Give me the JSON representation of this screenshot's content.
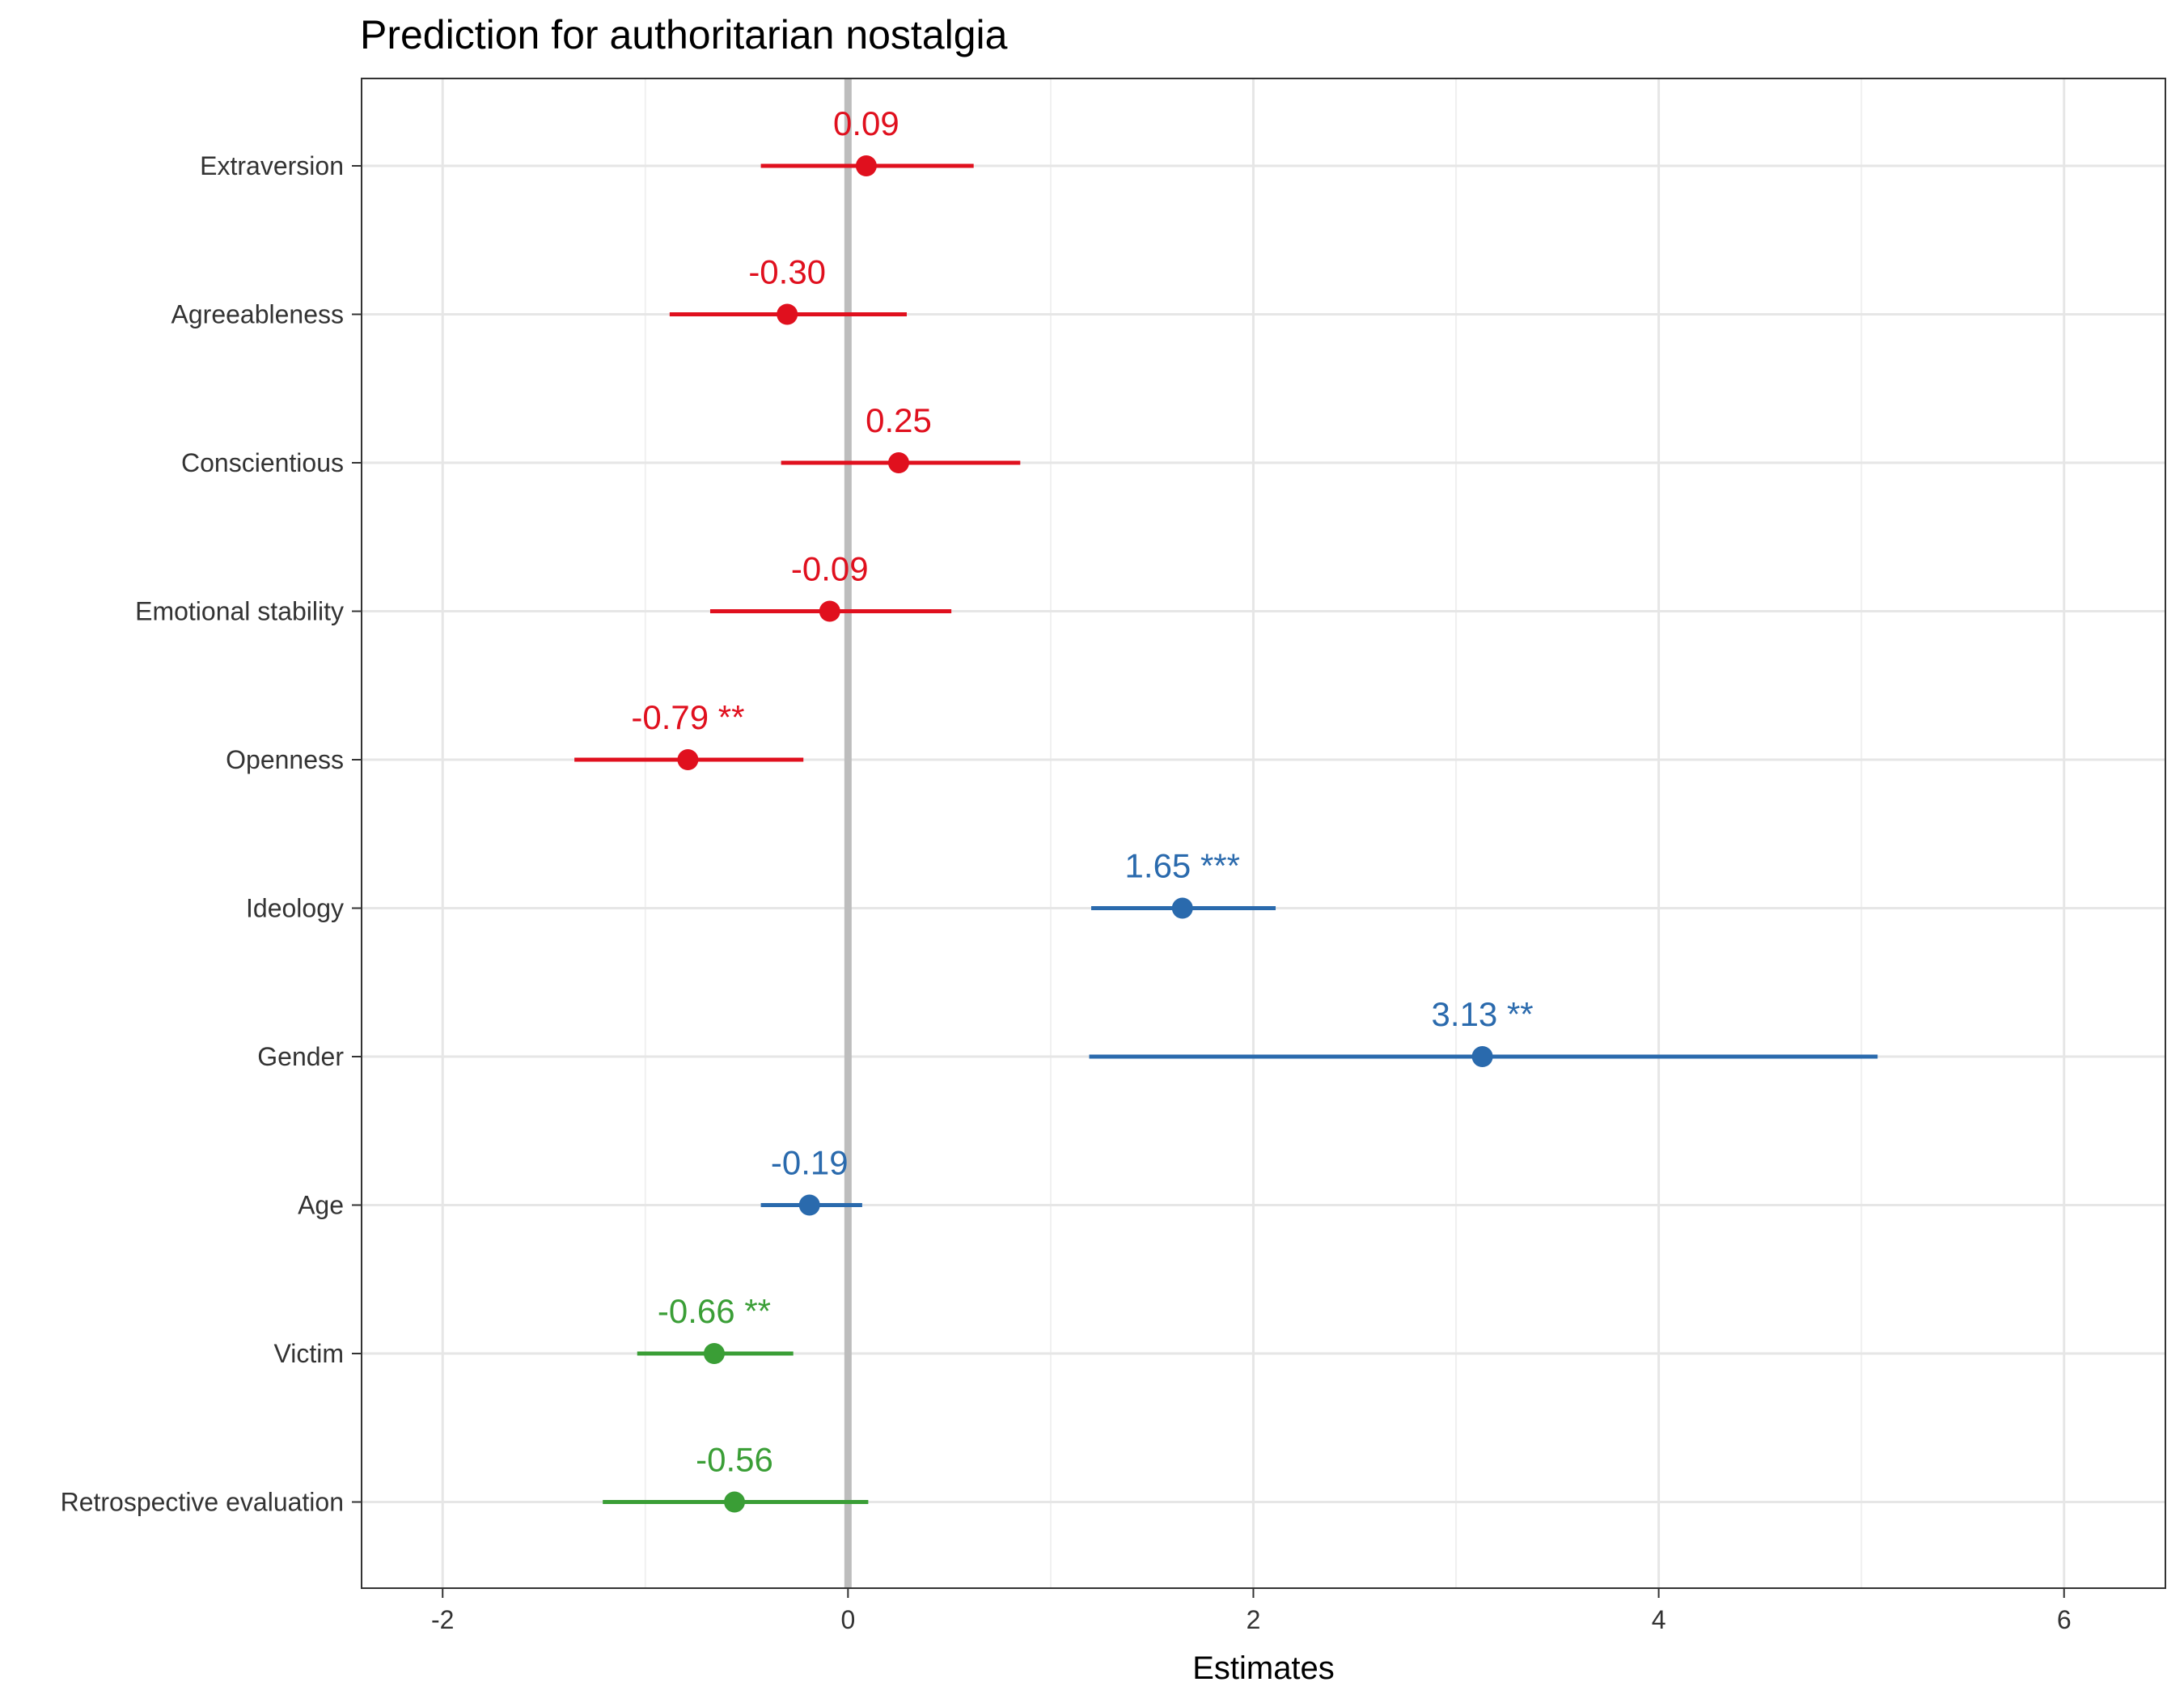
{
  "chart_data": {
    "type": "forest",
    "title": "Prediction for authoritarian nostalgia",
    "xlabel": "Estimates",
    "ylabel": "",
    "xlim": [
      -2.4,
      6.5
    ],
    "xticks": [
      -2,
      0,
      2,
      4,
      6
    ],
    "xtick_labels": [
      "-2",
      "0",
      "2",
      "4",
      "6"
    ],
    "grid": true,
    "reference_line_x": 0,
    "colors": {
      "red": "#e0101e",
      "blue": "#2a6aad",
      "green": "#3a9e36",
      "reference_line": "#bdbdbd",
      "grid_major": "#e6e6e6",
      "grid_minor": "#f0f0f0",
      "panel_border": "#333333"
    },
    "terms": [
      {
        "label": "Extraversion",
        "estimate": 0.09,
        "ci_low": -0.43,
        "ci_high": 0.62,
        "text": "0.09",
        "group": "red"
      },
      {
        "label": "Agreeableness",
        "estimate": -0.3,
        "ci_low": -0.88,
        "ci_high": 0.29,
        "text": "-0.30",
        "group": "red"
      },
      {
        "label": "Conscientious",
        "estimate": 0.25,
        "ci_low": -0.33,
        "ci_high": 0.85,
        "text": "0.25",
        "group": "red"
      },
      {
        "label": "Emotional stability",
        "estimate": -0.09,
        "ci_low": -0.68,
        "ci_high": 0.51,
        "text": "-0.09",
        "group": "red"
      },
      {
        "label": "Openness",
        "estimate": -0.79,
        "ci_low": -1.35,
        "ci_high": -0.22,
        "text": "-0.79 **",
        "group": "red"
      },
      {
        "label": "Ideology",
        "estimate": 1.65,
        "ci_low": 1.2,
        "ci_high": 2.11,
        "text": "1.65 ***",
        "group": "blue"
      },
      {
        "label": "Gender",
        "estimate": 3.13,
        "ci_low": 1.19,
        "ci_high": 5.08,
        "text": "3.13 **",
        "group": "blue"
      },
      {
        "label": "Age",
        "estimate": -0.19,
        "ci_low": -0.43,
        "ci_high": 0.07,
        "text": "-0.19",
        "group": "blue"
      },
      {
        "label": "Victim",
        "estimate": -0.66,
        "ci_low": -1.04,
        "ci_high": -0.27,
        "text": "-0.66 **",
        "group": "green"
      },
      {
        "label": "Retrospective evaluation",
        "estimate": -0.56,
        "ci_low": -1.21,
        "ci_high": 0.1,
        "text": "-0.56",
        "group": "green"
      }
    ]
  }
}
